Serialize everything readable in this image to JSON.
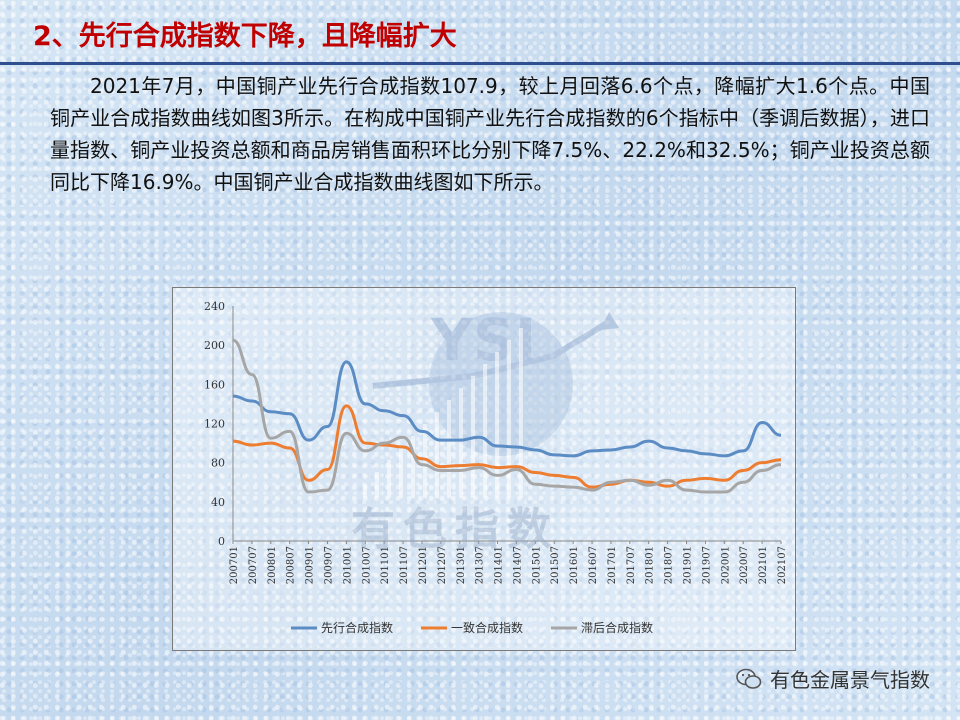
{
  "slide": {
    "title": "2、先行合成指数下降，且降幅扩大",
    "paragraph": "2021年7月，中国铜产业先行合成指数107.9，较上月回落6.6个点，降幅扩大1.6个点。中国铜产业合成指数曲线如图3所示。在构成中国铜产业先行合成指数的6个指标中（季调后数据），进口量指数、铜产业投资总额和商品房销售面积环比分别下降7.5%、22.2%和32.5%；铜产业投资总额同比下降16.9%。中国铜产业合成指数曲线图如下所示。",
    "watermark": "有色指数",
    "watermark_logo": "YSI",
    "footer": "有色金属景气指数"
  },
  "colors": {
    "title": "#c00000",
    "leading": "#5b8cc4",
    "coincident": "#ed7d31",
    "lagging": "#a6a6a6"
  },
  "chart_data": {
    "type": "line",
    "title": "",
    "xlabel": "",
    "ylabel": "",
    "ylim": [
      0,
      240
    ],
    "yticks": [
      0,
      40,
      80,
      120,
      160,
      200,
      240
    ],
    "grid": false,
    "legend_position": "bottom",
    "x_tick_labels": [
      "200701",
      "200707",
      "200801",
      "200807",
      "200901",
      "200907",
      "201001",
      "201007",
      "201101",
      "201107",
      "201201",
      "201207",
      "201301",
      "201307",
      "201401",
      "201407",
      "201501",
      "201507",
      "201601",
      "201607",
      "201701",
      "201707",
      "201801",
      "201807",
      "201901",
      "201907",
      "202001",
      "202007",
      "202101",
      "202107"
    ],
    "x": [
      "2007-01",
      "2007-07",
      "2008-01",
      "2008-07",
      "2009-01",
      "2009-07",
      "2010-01",
      "2010-07",
      "2011-01",
      "2011-07",
      "2012-01",
      "2012-07",
      "2013-01",
      "2013-07",
      "2014-01",
      "2014-07",
      "2015-01",
      "2015-07",
      "2016-01",
      "2016-07",
      "2017-01",
      "2017-07",
      "2018-01",
      "2018-07",
      "2019-01",
      "2019-07",
      "2020-01",
      "2020-07",
      "2021-01",
      "2021-07"
    ],
    "series": [
      {
        "name": "先行合成指数",
        "color_key": "leading",
        "values": [
          148,
          143,
          132,
          130,
          103,
          117,
          183,
          140,
          133,
          128,
          112,
          103,
          103,
          106,
          97,
          96,
          93,
          88,
          87,
          92,
          93,
          96,
          102,
          95,
          92,
          89,
          87,
          92,
          121,
          108
        ]
      },
      {
        "name": "一致合成指数",
        "color_key": "coincident",
        "values": [
          102,
          98,
          100,
          95,
          62,
          73,
          138,
          100,
          98,
          96,
          84,
          76,
          77,
          78,
          75,
          76,
          70,
          67,
          65,
          55,
          58,
          62,
          60,
          56,
          62,
          64,
          62,
          72,
          80,
          83
        ]
      },
      {
        "name": "滞后合成指数",
        "color_key": "lagging",
        "values": [
          205,
          170,
          105,
          112,
          50,
          52,
          110,
          92,
          100,
          106,
          78,
          72,
          72,
          75,
          67,
          73,
          58,
          56,
          55,
          52,
          60,
          62,
          57,
          62,
          52,
          50,
          50,
          60,
          72,
          78
        ]
      }
    ]
  }
}
